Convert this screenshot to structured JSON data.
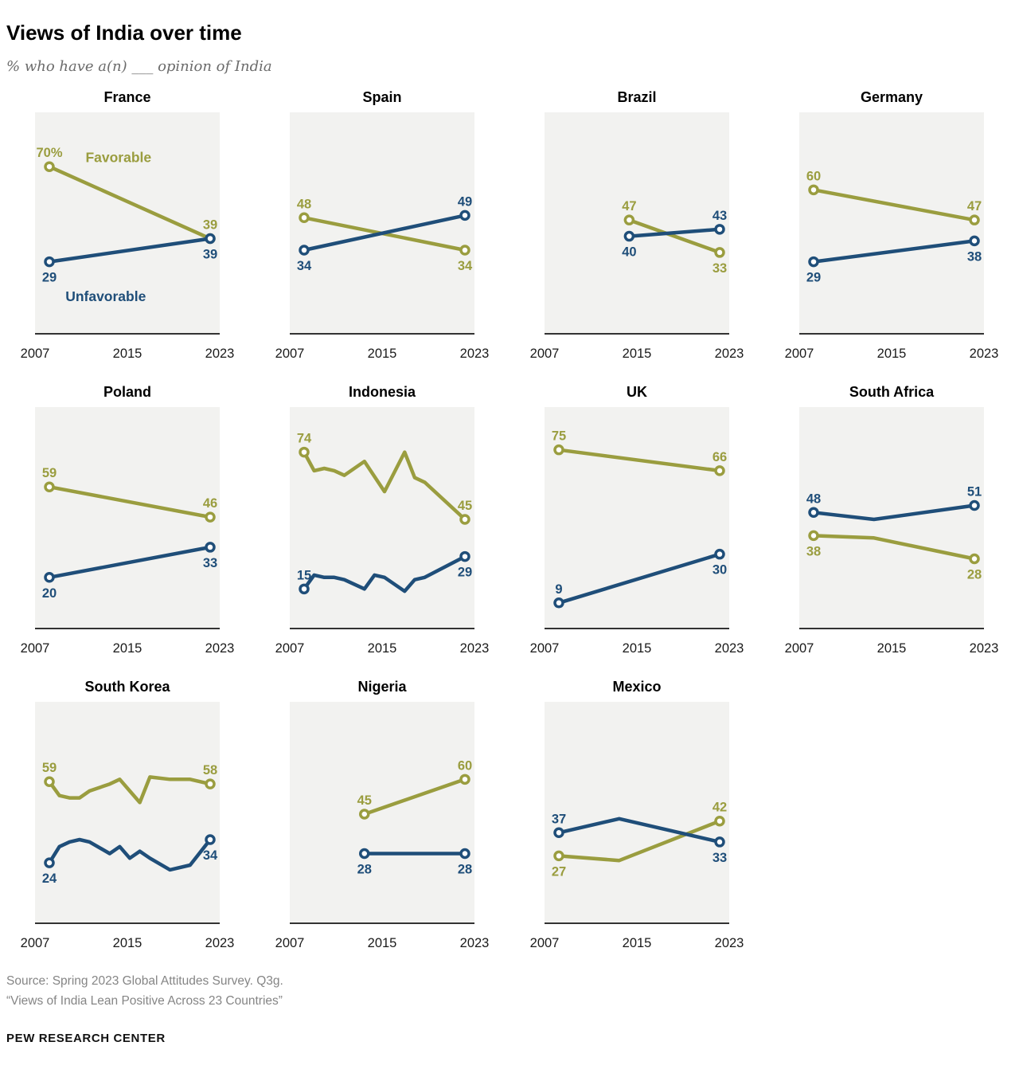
{
  "header": {
    "title": "Views of India over time",
    "subtitle": "% who have a(n) ___ opinion of India"
  },
  "colors": {
    "favorable": "#9A9D3F",
    "unfavorable": "#1F4E79",
    "panel_bg": "#F2F2F0",
    "axis": "#333333",
    "tick": "#1A1A1A"
  },
  "x_ticks": [
    "2007",
    "2015",
    "2023"
  ],
  "chart_data": {
    "type": "line",
    "x_range": [
      2007,
      2023
    ],
    "y_range": [
      0,
      90
    ],
    "grid": false,
    "legend_position": "inline-first-panel",
    "panels": [
      {
        "country": "France",
        "series": [
          {
            "name": "Favorable",
            "key": "favorable",
            "points": [
              [
                2007,
                70
              ],
              [
                2023,
                39
              ]
            ],
            "start_label": {
              "text": "70%",
              "pos": "above"
            },
            "end_label": {
              "text": "39",
              "pos": "above"
            }
          },
          {
            "name": "Unfavorable",
            "key": "unfavorable",
            "points": [
              [
                2007,
                29
              ],
              [
                2023,
                39
              ]
            ],
            "start_label": {
              "text": "29",
              "pos": "below"
            },
            "end_label": {
              "text": "39",
              "pos": "below"
            }
          }
        ],
        "annotations": [
          {
            "text": "Favorable",
            "key": "favorable",
            "x": 2010.6,
            "y": 72
          },
          {
            "text": "Unfavorable",
            "key": "unfavorable",
            "x": 2008.6,
            "y": 12
          }
        ]
      },
      {
        "country": "Spain",
        "series": [
          {
            "name": "Favorable",
            "key": "favorable",
            "points": [
              [
                2007,
                48
              ],
              [
                2023,
                34
              ]
            ],
            "start_label": {
              "text": "48",
              "pos": "above"
            },
            "end_label": {
              "text": "34",
              "pos": "below"
            }
          },
          {
            "name": "Unfavorable",
            "key": "unfavorable",
            "points": [
              [
                2007,
                34
              ],
              [
                2023,
                49
              ]
            ],
            "start_label": {
              "text": "34",
              "pos": "below"
            },
            "end_label": {
              "text": "49",
              "pos": "above"
            }
          }
        ],
        "annotations": []
      },
      {
        "country": "Brazil",
        "series": [
          {
            "name": "Favorable",
            "key": "favorable",
            "points": [
              [
                2014,
                47
              ],
              [
                2023,
                33
              ]
            ],
            "start_label": {
              "text": "47",
              "pos": "above"
            },
            "end_label": {
              "text": "33",
              "pos": "below"
            }
          },
          {
            "name": "Unfavorable",
            "key": "unfavorable",
            "points": [
              [
                2014,
                40
              ],
              [
                2023,
                43
              ]
            ],
            "start_label": {
              "text": "40",
              "pos": "below"
            },
            "end_label": {
              "text": "43",
              "pos": "above"
            }
          }
        ],
        "annotations": []
      },
      {
        "country": "Germany",
        "series": [
          {
            "name": "Favorable",
            "key": "favorable",
            "points": [
              [
                2007,
                60
              ],
              [
                2023,
                47
              ]
            ],
            "start_label": {
              "text": "60",
              "pos": "above"
            },
            "end_label": {
              "text": "47",
              "pos": "above"
            }
          },
          {
            "name": "Unfavorable",
            "key": "unfavorable",
            "points": [
              [
                2007,
                29
              ],
              [
                2023,
                38
              ]
            ],
            "start_label": {
              "text": "29",
              "pos": "below"
            },
            "end_label": {
              "text": "38",
              "pos": "below"
            }
          }
        ],
        "annotations": []
      },
      {
        "country": "Poland",
        "series": [
          {
            "name": "Favorable",
            "key": "favorable",
            "points": [
              [
                2007,
                59
              ],
              [
                2023,
                46
              ]
            ],
            "start_label": {
              "text": "59",
              "pos": "above"
            },
            "end_label": {
              "text": "46",
              "pos": "above"
            }
          },
          {
            "name": "Unfavorable",
            "key": "unfavorable",
            "points": [
              [
                2007,
                20
              ],
              [
                2023,
                33
              ]
            ],
            "start_label": {
              "text": "20",
              "pos": "below"
            },
            "end_label": {
              "text": "33",
              "pos": "below"
            }
          }
        ],
        "annotations": []
      },
      {
        "country": "Indonesia",
        "series": [
          {
            "name": "Favorable",
            "key": "favorable",
            "points": [
              [
                2007,
                74
              ],
              [
                2008,
                66
              ],
              [
                2009,
                67
              ],
              [
                2010,
                66
              ],
              [
                2011,
                64
              ],
              [
                2013,
                70
              ],
              [
                2015,
                57
              ],
              [
                2017,
                74
              ],
              [
                2018,
                63
              ],
              [
                2019,
                61
              ],
              [
                2023,
                45
              ]
            ],
            "start_label": {
              "text": "74",
              "pos": "above"
            },
            "end_label": {
              "text": "45",
              "pos": "above"
            }
          },
          {
            "name": "Unfavorable",
            "key": "unfavorable",
            "points": [
              [
                2007,
                15
              ],
              [
                2008,
                21
              ],
              [
                2009,
                20
              ],
              [
                2010,
                20
              ],
              [
                2011,
                19
              ],
              [
                2013,
                15
              ],
              [
                2014,
                21
              ],
              [
                2015,
                20
              ],
              [
                2017,
                14
              ],
              [
                2018,
                19
              ],
              [
                2019,
                20
              ],
              [
                2023,
                29
              ]
            ],
            "start_label": {
              "text": "15",
              "pos": "above"
            },
            "end_label": {
              "text": "29",
              "pos": "below"
            }
          }
        ],
        "annotations": []
      },
      {
        "country": "UK",
        "series": [
          {
            "name": "Favorable",
            "key": "favorable",
            "points": [
              [
                2007,
                75
              ],
              [
                2023,
                66
              ]
            ],
            "start_label": {
              "text": "75",
              "pos": "above"
            },
            "end_label": {
              "text": "66",
              "pos": "above"
            }
          },
          {
            "name": "Unfavorable",
            "key": "unfavorable",
            "points": [
              [
                2007,
                9
              ],
              [
                2023,
                30
              ]
            ],
            "start_label": {
              "text": "9",
              "pos": "above"
            },
            "end_label": {
              "text": "30",
              "pos": "below"
            }
          }
        ],
        "annotations": []
      },
      {
        "country": "South Africa",
        "series": [
          {
            "name": "Favorable",
            "key": "favorable",
            "points": [
              [
                2007,
                38
              ],
              [
                2013,
                37
              ],
              [
                2023,
                28
              ]
            ],
            "start_label": {
              "text": "38",
              "pos": "below"
            },
            "end_label": {
              "text": "28",
              "pos": "below"
            }
          },
          {
            "name": "Unfavorable",
            "key": "unfavorable",
            "points": [
              [
                2007,
                48
              ],
              [
                2013,
                45
              ],
              [
                2023,
                51
              ]
            ],
            "start_label": {
              "text": "48",
              "pos": "above"
            },
            "end_label": {
              "text": "51",
              "pos": "above"
            }
          }
        ],
        "annotations": []
      },
      {
        "country": "South Korea",
        "series": [
          {
            "name": "Favorable",
            "key": "favorable",
            "points": [
              [
                2007,
                59
              ],
              [
                2008,
                53
              ],
              [
                2009,
                52
              ],
              [
                2010,
                52
              ],
              [
                2011,
                55
              ],
              [
                2013,
                58
              ],
              [
                2014,
                60
              ],
              [
                2015,
                55
              ],
              [
                2016,
                50
              ],
              [
                2017,
                61
              ],
              [
                2019,
                60
              ],
              [
                2021,
                60
              ],
              [
                2023,
                58
              ]
            ],
            "start_label": {
              "text": "59",
              "pos": "above"
            },
            "end_label": {
              "text": "58",
              "pos": "above"
            }
          },
          {
            "name": "Unfavorable",
            "key": "unfavorable",
            "points": [
              [
                2007,
                24
              ],
              [
                2008,
                31
              ],
              [
                2009,
                33
              ],
              [
                2010,
                34
              ],
              [
                2011,
                33
              ],
              [
                2013,
                28
              ],
              [
                2014,
                31
              ],
              [
                2015,
                26
              ],
              [
                2016,
                29
              ],
              [
                2017,
                26
              ],
              [
                2019,
                21
              ],
              [
                2021,
                23
              ],
              [
                2023,
                34
              ]
            ],
            "start_label": {
              "text": "24",
              "pos": "below"
            },
            "end_label": {
              "text": "34",
              "pos": "below"
            }
          }
        ],
        "annotations": []
      },
      {
        "country": "Nigeria",
        "series": [
          {
            "name": "Favorable",
            "key": "favorable",
            "points": [
              [
                2013,
                45
              ],
              [
                2023,
                60
              ]
            ],
            "start_label": {
              "text": "45",
              "pos": "above"
            },
            "end_label": {
              "text": "60",
              "pos": "above"
            }
          },
          {
            "name": "Unfavorable",
            "key": "unfavorable",
            "points": [
              [
                2013,
                28
              ],
              [
                2023,
                28
              ]
            ],
            "start_label": {
              "text": "28",
              "pos": "below"
            },
            "end_label": {
              "text": "28",
              "pos": "below"
            }
          }
        ],
        "annotations": []
      },
      {
        "country": "Mexico",
        "series": [
          {
            "name": "Favorable",
            "key": "favorable",
            "points": [
              [
                2007,
                27
              ],
              [
                2013,
                25
              ],
              [
                2023,
                42
              ]
            ],
            "start_label": {
              "text": "27",
              "pos": "below"
            },
            "end_label": {
              "text": "42",
              "pos": "above"
            }
          },
          {
            "name": "Unfavorable",
            "key": "unfavorable",
            "points": [
              [
                2007,
                37
              ],
              [
                2013,
                43
              ],
              [
                2023,
                33
              ]
            ],
            "start_label": {
              "text": "37",
              "pos": "above"
            },
            "end_label": {
              "text": "33",
              "pos": "below"
            }
          }
        ],
        "annotations": []
      }
    ]
  },
  "footer": {
    "source_line1": "Source: Spring 2023 Global Attitudes Survey. Q3g.",
    "source_line2": "“Views of India Lean Positive Across 23 Countries”",
    "brand": "PEW RESEARCH CENTER"
  }
}
